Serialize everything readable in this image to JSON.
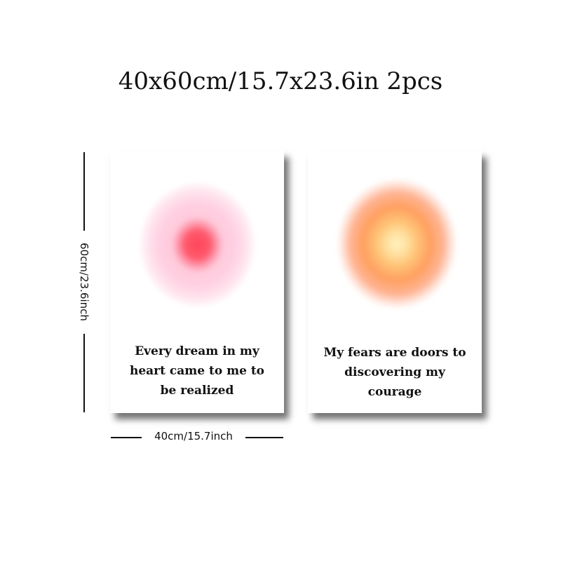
{
  "title": "40x60cm/15.7x23.6in 2pcs",
  "dimensions": {
    "height_label": "60cm/23.6inch",
    "width_label": "40cm/15.7inch"
  },
  "posters": [
    {
      "color_scheme": "pink",
      "glow_colors": [
        "#ff4a5e",
        "#ffb3cc"
      ],
      "quote_lines": [
        "Every dream in my",
        "heart came to me to",
        "be realized"
      ]
    },
    {
      "color_scheme": "orange",
      "glow_colors": [
        "#fff0be",
        "#ff8c50"
      ],
      "quote_lines": [
        "My fears are doors to",
        "discovering my",
        "courage"
      ]
    }
  ]
}
